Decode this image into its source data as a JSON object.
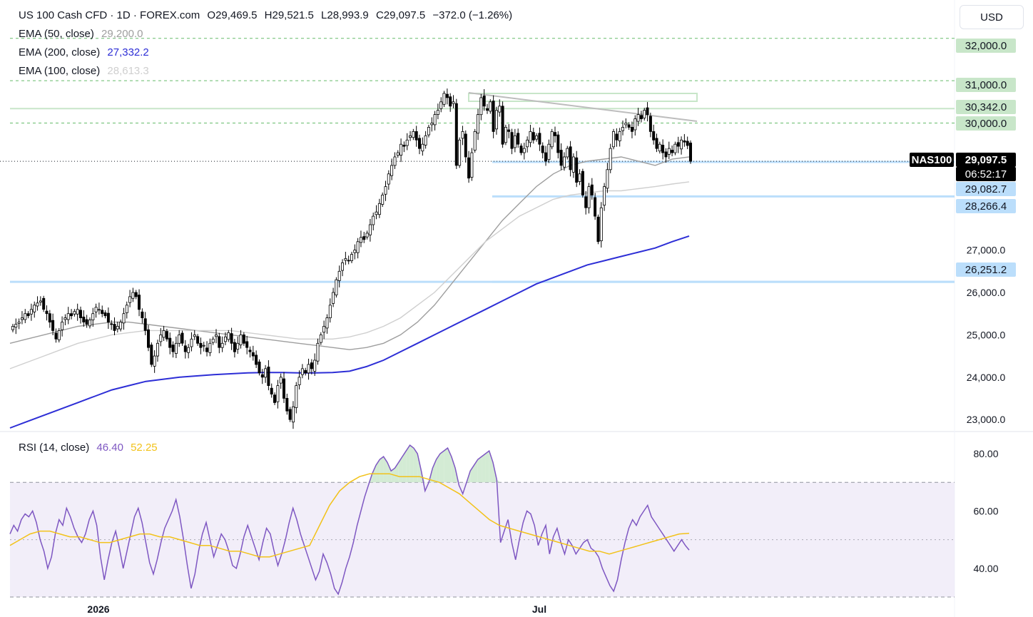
{
  "header": {
    "symbol_title": "US 100 Cash CFD · 1D · FOREX.com",
    "ohlc": [
      {
        "key": "O",
        "value": "29,469.5"
      },
      {
        "key": "H",
        "value": "29,521.5"
      },
      {
        "key": "L",
        "value": "28,993.9"
      },
      {
        "key": "C",
        "value": "29,097.5"
      }
    ],
    "change": "−372.0 (−1.26%)",
    "currency": "USD"
  },
  "indicators": [
    {
      "label": "EMA (50, close)",
      "value": "29,200.0",
      "color": "#9e9e9e"
    },
    {
      "label": "EMA (200, close)",
      "value": "27,332.2",
      "color": "#2d2ed6"
    },
    {
      "label": "EMA (100, close)",
      "value": "28,613.3",
      "color": "#cfcfcf"
    }
  ],
  "rsi_legend": {
    "label": "RSI (14, close)",
    "value": "46.40",
    "value_color": "#7e57c2",
    "ma_value": "52.25",
    "ma_color": "#f2c21a"
  },
  "price_tags": {
    "symbol": "NAS100",
    "last": "29,097.5",
    "countdown": "06:52:17",
    "levels": [
      "32,000.0",
      "31,000.0",
      "30,342.0",
      "30,000.0",
      "29,082.7",
      "28,266.4",
      "26,251.2"
    ]
  },
  "colors": {
    "up_candle": "#ffffff",
    "down_candle": "#000000",
    "ema50": "#9e9e9e",
    "ema100": "#cfcfcf",
    "ema200": "#2d2ed6",
    "rsi": "#7e57c2",
    "rsi_ma": "#f2c21a",
    "level_green": "#c8e6c9",
    "level_blue": "#bbdefb"
  },
  "chart_data": [
    {
      "type": "candlestick",
      "title": "US 100 Cash CFD · 1D · FOREX.com",
      "y_ticks": [
        "23,000.0",
        "24,000.0",
        "25,000.0",
        "26,000.0",
        "27,000.0"
      ],
      "x_ticks": [
        "2026",
        "Jul"
      ],
      "ylim": [
        22800,
        32400
      ],
      "horizontal_levels": [
        32000,
        31000,
        30342,
        30000,
        29082.7,
        28266.4,
        26251.2
      ],
      "series": [
        {
          "name": "US 100 Cash CFD",
          "close": [
            25200,
            25250,
            25300,
            25400,
            25500,
            25450,
            25600,
            25700,
            25750,
            25800,
            25600,
            25500,
            25300,
            25100,
            24900,
            25100,
            25300,
            25400,
            25500,
            25450,
            25550,
            25600,
            25400,
            25300,
            25250,
            25350,
            25500,
            25650,
            25600,
            25500,
            25450,
            25300,
            25250,
            25100,
            25200,
            25300,
            25500,
            25700,
            25900,
            26000,
            25900,
            25600,
            25400,
            25100,
            24700,
            24300,
            24500,
            24800,
            25000,
            25100,
            24900,
            24700,
            24600,
            24800,
            25000,
            24800,
            24600,
            24700,
            24900,
            25000,
            24800,
            24700,
            24750,
            24600,
            24800,
            24900,
            25000,
            24700,
            24800,
            24950,
            25050,
            24800,
            24600,
            24800,
            25000,
            24800,
            24700,
            24600,
            24500,
            24300,
            24100,
            24000,
            24200,
            23800,
            23600,
            23400,
            23800,
            24000,
            23500,
            23200,
            23000,
            23300,
            23800,
            24000,
            24200,
            24100,
            24300,
            24200,
            24400,
            24800,
            25000,
            25200,
            25400,
            25700,
            26000,
            26300,
            26500,
            26700,
            26800,
            26750,
            26900,
            27000,
            27200,
            27300,
            27250,
            27400,
            27600,
            27800,
            27900,
            28100,
            28300,
            28500,
            28800,
            29000,
            29200,
            29300,
            29500,
            29450,
            29600,
            29700,
            29800,
            29600,
            29400,
            29500,
            29700,
            29900,
            30000,
            30200,
            30300,
            30500,
            30700,
            30600,
            30400,
            30500,
            29000,
            29600,
            29800,
            29200,
            28700,
            29300,
            29800,
            30200,
            30600,
            30400,
            30300,
            30500,
            29800,
            30300,
            30400,
            29500,
            29900,
            29800,
            29400,
            29700,
            29500,
            29300,
            29400,
            29600,
            29800,
            29600,
            29700,
            29500,
            29300,
            29100,
            29500,
            29800,
            29700,
            29300,
            29000,
            29200,
            29400,
            28900,
            29200,
            28600,
            28800,
            28300,
            28000,
            28500,
            28300,
            27800,
            27200,
            28000,
            28500,
            28900,
            29400,
            29800,
            29600,
            29800,
            29900,
            30000,
            29900,
            29800,
            30100,
            30200,
            30100,
            30300,
            30200,
            29800,
            29600,
            29400,
            29500,
            29300,
            29200,
            29400,
            29300,
            29500,
            29450,
            29600,
            29550,
            29469.5,
            29097.5
          ]
        },
        {
          "name": "EMA (50, close)",
          "values": [
            24800,
            24900,
            25000,
            25100,
            25200,
            25250,
            25300,
            25300,
            25250,
            25200,
            25150,
            25100,
            25050,
            25000,
            24950,
            24900,
            24850,
            24800,
            24750,
            24700,
            24650,
            24700,
            24800,
            25000,
            25300,
            25700,
            26200,
            26700,
            27200,
            27700,
            28100,
            28500,
            28800,
            29000,
            29100,
            29150,
            29200,
            29100,
            29000,
            29150,
            29200
          ]
        },
        {
          "name": "EMA (100, close)",
          "values": [
            24200,
            24350,
            24500,
            24650,
            24800,
            24900,
            25000,
            25050,
            25100,
            25100,
            25100,
            25100,
            25100,
            25100,
            25050,
            25000,
            24950,
            24900,
            24900,
            24900,
            24950,
            25050,
            25200,
            25400,
            25700,
            26000,
            26400,
            26800,
            27200,
            27500,
            27800,
            28000,
            28200,
            28300,
            28350,
            28400,
            28400,
            28450,
            28500,
            28560,
            28613
          ]
        },
        {
          "name": "EMA (200, close)",
          "values": [
            22800,
            22950,
            23100,
            23250,
            23400,
            23550,
            23700,
            23800,
            23900,
            23950,
            24000,
            24030,
            24060,
            24080,
            24100,
            24110,
            24110,
            24100,
            24100,
            24110,
            24140,
            24250,
            24400,
            24600,
            24800,
            25000,
            25200,
            25400,
            25600,
            25800,
            26000,
            26200,
            26350,
            26500,
            26650,
            26750,
            26850,
            26950,
            27050,
            27200,
            27332
          ]
        }
      ]
    },
    {
      "type": "line",
      "title": "RSI (14, close)",
      "y_ticks": [
        "40.00",
        "60.00",
        "80.00"
      ],
      "ylim": [
        28,
        86
      ],
      "bands": [
        30,
        50,
        70
      ],
      "series": [
        {
          "name": "RSI (14, close)",
          "values": [
            52,
            55,
            53,
            57,
            59,
            58,
            60,
            56,
            50,
            46,
            40,
            44,
            52,
            57,
            55,
            61,
            58,
            54,
            51,
            49,
            52,
            57,
            60,
            55,
            44,
            36,
            43,
            49,
            53,
            47,
            40,
            46,
            52,
            58,
            61,
            56,
            49,
            42,
            38,
            43,
            49,
            54,
            57,
            60,
            64,
            58,
            50,
            41,
            33,
            38,
            46,
            52,
            56,
            50,
            44,
            48,
            52,
            50,
            46,
            41,
            40,
            45,
            51,
            55,
            51,
            47,
            43,
            49,
            54,
            52,
            46,
            41,
            45,
            50,
            56,
            61,
            57,
            52,
            48,
            44,
            40,
            36,
            39,
            45,
            42,
            38,
            33,
            31,
            35,
            40,
            44,
            49,
            55,
            60,
            65,
            69,
            73,
            76,
            78,
            79,
            77,
            74,
            75,
            77,
            79,
            81,
            83,
            82,
            80,
            74,
            67,
            70,
            75,
            78,
            80,
            81,
            82,
            79,
            75,
            69,
            66,
            70,
            74,
            76,
            78,
            79,
            80,
            81,
            77,
            71,
            49,
            53,
            57,
            49,
            43,
            50,
            56,
            60,
            59,
            55,
            48,
            52,
            55,
            45,
            51,
            54,
            49,
            45,
            50,
            48,
            45,
            47,
            49,
            50,
            47,
            46,
            44,
            40,
            37,
            34,
            32,
            36,
            43,
            49,
            54,
            57,
            55,
            58,
            60,
            62,
            58,
            56,
            54,
            52,
            50,
            48,
            46,
            48,
            50,
            48,
            46.4
          ]
        },
        {
          "name": "RSI MA",
          "values": [
            48,
            50,
            52,
            53,
            53,
            52,
            51,
            51,
            50,
            49,
            49,
            50,
            51,
            52,
            52,
            51,
            51,
            50,
            49,
            48,
            48,
            47,
            46,
            46,
            45,
            44,
            44,
            45,
            46,
            47,
            48,
            55,
            62,
            67,
            70,
            72,
            73,
            73,
            73,
            72,
            72,
            72,
            71,
            70,
            68,
            66,
            63,
            60,
            57,
            55,
            54,
            53,
            52,
            51,
            50,
            49,
            48,
            47,
            46,
            46,
            45,
            46,
            47,
            48,
            49,
            50,
            51,
            52,
            52.25
          ]
        }
      ]
    }
  ]
}
